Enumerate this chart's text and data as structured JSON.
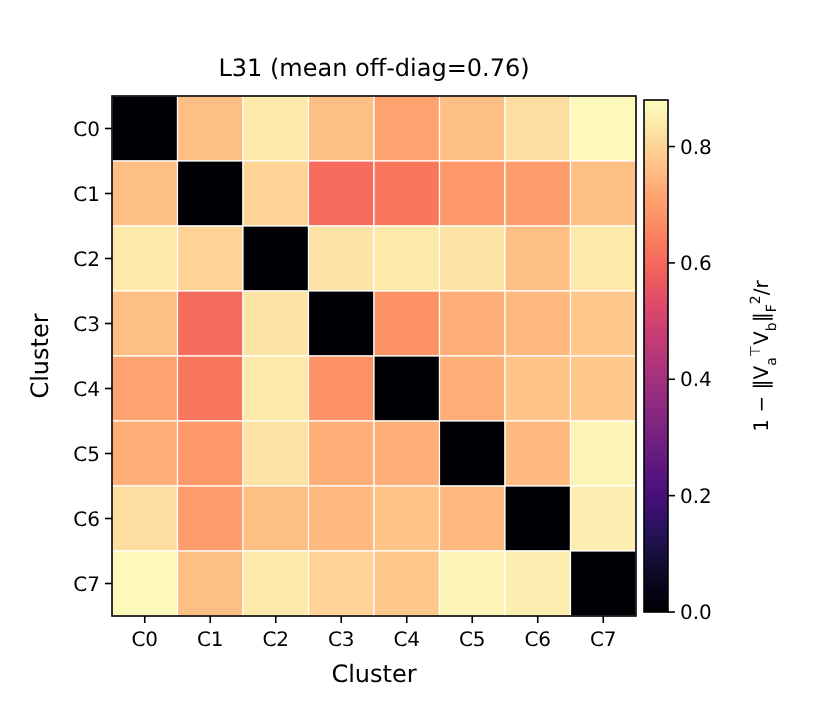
{
  "chart_data": {
    "type": "heatmap",
    "title": "L31  (mean off-diag=0.76)",
    "xlabel": "Cluster",
    "ylabel": "Cluster",
    "clabel": "1 − ‖V$_{a}$$^{⊤}$V$_{b}$‖$_{F}$$^{2}$/r",
    "categories": [
      "C0",
      "C1",
      "C2",
      "C3",
      "C4",
      "C5",
      "C6",
      "C7"
    ],
    "y_categories": [
      "C0",
      "C1",
      "C2",
      "C3",
      "C4",
      "C5",
      "C6",
      "C7"
    ],
    "cells": [
      [
        0,
        0.76,
        0.84,
        0.76,
        0.71,
        0.76,
        0.82,
        0.87
      ],
      [
        0.76,
        0,
        0.8,
        0.61,
        0.63,
        0.69,
        0.7,
        0.76
      ],
      [
        0.84,
        0.8,
        0,
        0.83,
        0.84,
        0.83,
        0.76,
        0.84
      ],
      [
        0.76,
        0.61,
        0.83,
        0,
        0.68,
        0.73,
        0.75,
        0.78
      ],
      [
        0.71,
        0.63,
        0.84,
        0.68,
        0,
        0.73,
        0.77,
        0.78
      ],
      [
        0.73,
        0.69,
        0.83,
        0.73,
        0.73,
        0,
        0.75,
        0.86
      ],
      [
        0.82,
        0.7,
        0.76,
        0.75,
        0.77,
        0.75,
        0,
        0.85
      ],
      [
        0.87,
        0.76,
        0.84,
        0.8,
        0.78,
        0.86,
        0.85,
        0
      ]
    ],
    "clim": [
      0,
      0.88
    ],
    "cticks": [
      {
        "value": 0,
        "label": "0.0"
      },
      {
        "value": 0.2,
        "label": "0.2"
      },
      {
        "value": 0.4,
        "label": "0.4"
      },
      {
        "value": 0.6,
        "label": "0.6"
      },
      {
        "value": 0.8,
        "label": "0.8"
      }
    ]
  }
}
